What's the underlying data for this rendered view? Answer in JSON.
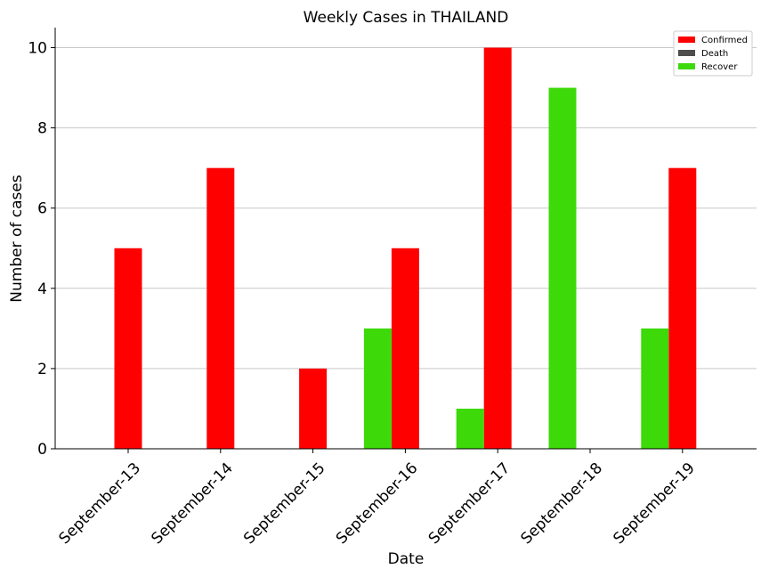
{
  "chart_data": {
    "type": "bar",
    "title": "Weekly Cases in THAILAND",
    "xlabel": "Date",
    "ylabel": "Number of cases",
    "categories": [
      "September-13",
      "September-14",
      "September-15",
      "September-16",
      "September-17",
      "September-18",
      "September-19"
    ],
    "series": [
      {
        "name": "Confirmed",
        "color": "#ff0000",
        "values": [
          5,
          7,
          2,
          5,
          10,
          0,
          7
        ]
      },
      {
        "name": "Death",
        "color": "#4d4d4d",
        "values": [
          0,
          0,
          0,
          0,
          0,
          0,
          0
        ]
      },
      {
        "name": "Recover",
        "color": "#3dd909",
        "values": [
          0,
          0,
          0,
          3,
          1,
          9,
          3
        ]
      }
    ],
    "ylim": [
      0,
      10.5
    ],
    "yticks": [
      0,
      2,
      4,
      6,
      8,
      10
    ],
    "grid": "horizontal",
    "legend_position": "top-right"
  }
}
